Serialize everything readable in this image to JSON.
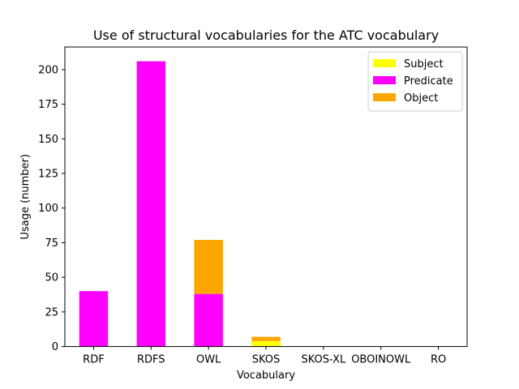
{
  "chart_data": {
    "type": "bar",
    "stacked": true,
    "title": "Use of structural vocabularies for the ATC vocabulary",
    "xlabel": "Vocabulary",
    "ylabel": "Usage (number)",
    "categories": [
      "RDF",
      "RDFS",
      "OWL",
      "SKOS",
      "SKOS-XL",
      "OBOINOWL",
      "RO"
    ],
    "series": [
      {
        "name": "Subject",
        "color": "#ffff00",
        "values": [
          0,
          0,
          0,
          4,
          0,
          0,
          0
        ]
      },
      {
        "name": "Predicate",
        "color": "#ff00ff",
        "values": [
          40,
          206,
          38,
          0,
          0,
          0,
          0
        ]
      },
      {
        "name": "Object",
        "color": "#ffa500",
        "values": [
          0,
          0,
          39,
          3,
          0,
          0,
          0
        ]
      }
    ],
    "ylim": [
      0,
      216.3
    ],
    "yticks": [
      0,
      25,
      50,
      75,
      100,
      125,
      150,
      175,
      200
    ],
    "grid": false,
    "legend_position": "top-right"
  }
}
